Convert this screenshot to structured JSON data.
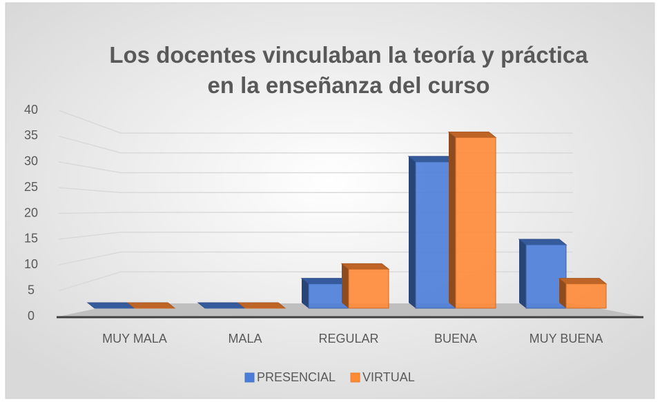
{
  "chart_data": {
    "type": "bar3d",
    "title": "Los docentes vinculaban la teoría y práctica en la enseñanza del curso",
    "categories": [
      "MUY MALA",
      "MALA",
      "REGULAR",
      "BUENA",
      "MUY BUENA"
    ],
    "series": [
      {
        "name": "PRESENCIAL",
        "color": "#4472c4",
        "values": [
          0,
          0,
          5,
          30,
          13
        ]
      },
      {
        "name": "VIRTUAL",
        "color": "#ed7d31",
        "values": [
          0,
          0,
          8,
          35,
          5
        ]
      }
    ],
    "ylim": [
      0,
      40
    ],
    "yticks": [
      0,
      5,
      10,
      15,
      20,
      25,
      30,
      35,
      40
    ],
    "grid": true,
    "legend": "bottom"
  }
}
